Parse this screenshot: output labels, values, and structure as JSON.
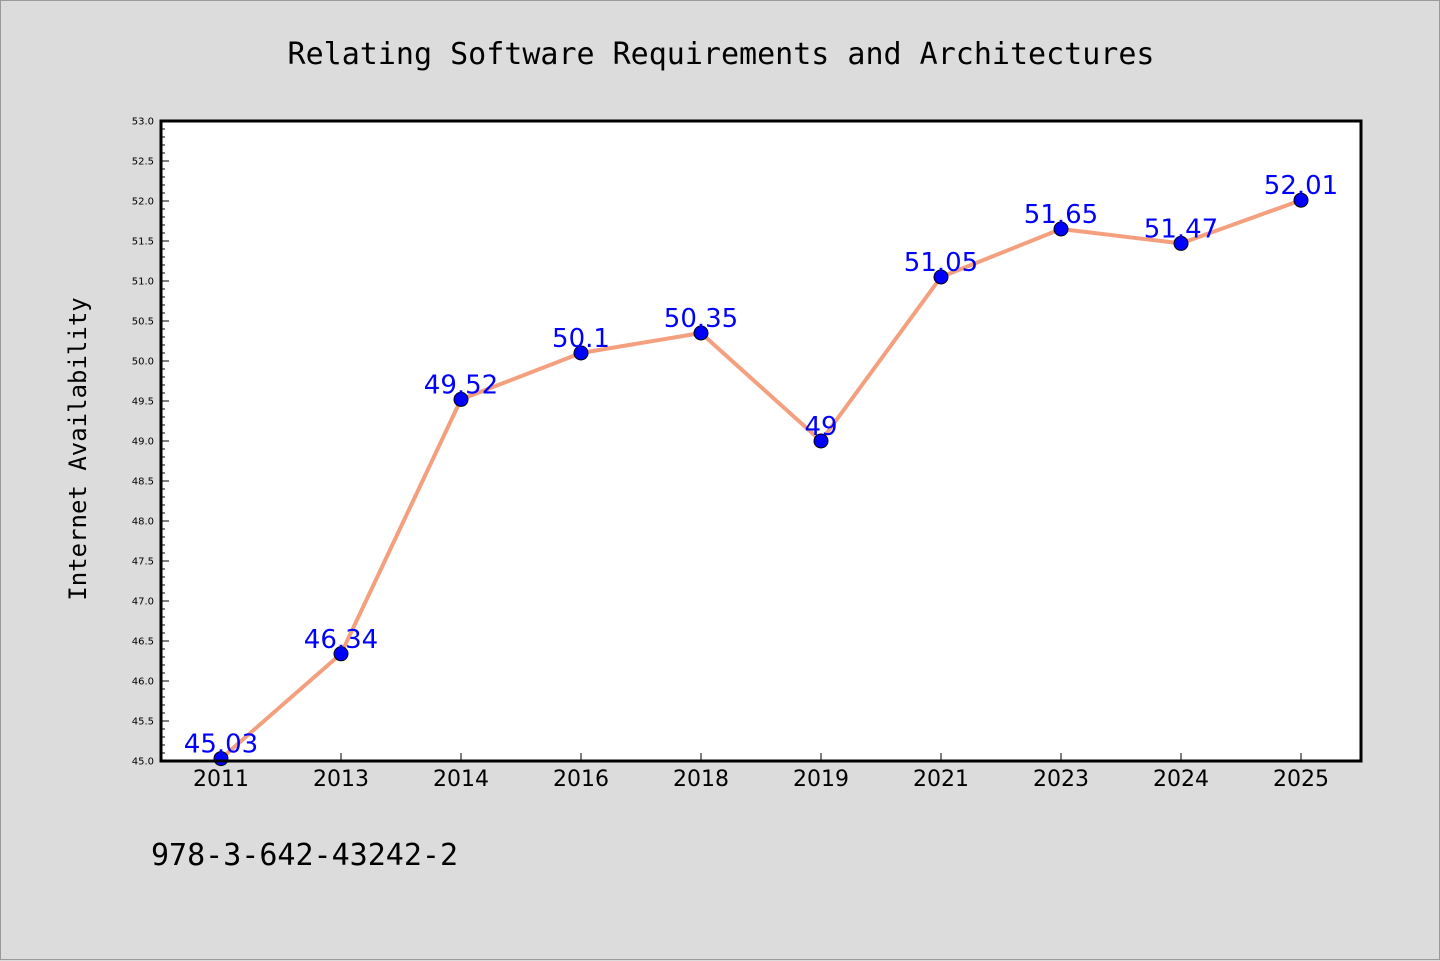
{
  "chart_data": {
    "type": "line",
    "title": "Relating Software Requirements and Architectures",
    "ylabel": "Internet Availability",
    "xlabel": "",
    "categories": [
      "2011",
      "2013",
      "2014",
      "2016",
      "2018",
      "2019",
      "2021",
      "2023",
      "2024",
      "2025"
    ],
    "series": [
      {
        "values": [
          45.03,
          46.34,
          49.52,
          50.1,
          50.35,
          49,
          51.05,
          51.65,
          51.47,
          52.01
        ],
        "labels": [
          "45.03",
          "46.34",
          "49.52",
          "50.1",
          "50.35",
          "49",
          "51.05",
          "51.65",
          "51.47",
          "52.01"
        ]
      }
    ],
    "ylim": [
      45.0,
      53.0
    ],
    "yticks": [
      "45.0",
      "45.5",
      "46.0",
      "46.5",
      "47.0",
      "47.5",
      "48.0",
      "48.5",
      "49.0",
      "49.5",
      "50.0",
      "50.5",
      "51.0",
      "51.5",
      "52.0",
      "52.5",
      "53.0"
    ],
    "grid": false,
    "colors": {
      "line": "#f4a07e",
      "marker": "#0000ff",
      "label": "#0000ff",
      "background": "#dcdcdc",
      "plot_background": "#ffffff"
    }
  },
  "footer": {
    "isbn": "978-3-642-43242-2"
  }
}
